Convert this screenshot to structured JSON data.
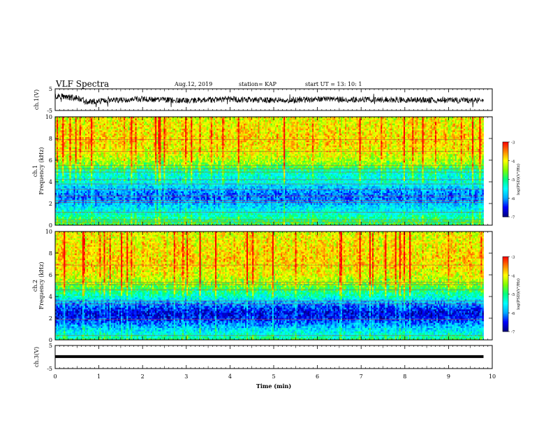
{
  "header": {
    "title": "VLF Spectra",
    "date": "Aug.12, 2019",
    "station": "station= KAP",
    "start": "start  UT  =   13: 10: 1"
  },
  "chart_data": [
    {
      "type": "line",
      "name": "ch1-waveform",
      "ylabel": "ch.1(V)",
      "ylim": [
        -5,
        5
      ],
      "yticks": [
        "5",
        "-5"
      ],
      "xlim": [
        0,
        10
      ],
      "x_extent_min": 9.8,
      "baseline_V": [
        1.8,
        0.4,
        -1.0,
        -0.2,
        0.3,
        -0.5,
        0.2,
        -0.3,
        0.1,
        0.0,
        -0.4
      ],
      "baseline_t": [
        0.0,
        0.6,
        0.7,
        1.5,
        2.0,
        3.0,
        4.0,
        5.0,
        6.0,
        8.0,
        9.8
      ],
      "color": "#000000"
    },
    {
      "type": "heatmap",
      "name": "ch1-spectrogram",
      "ylabel": "Frequency (kHz)",
      "channel_label": "ch.1",
      "ylim": [
        0,
        10
      ],
      "yticks": [
        "0",
        "2",
        "4",
        "6",
        "8",
        "10"
      ],
      "xlim": [
        0,
        10
      ],
      "x_extent_min": 9.8,
      "clim": [
        -7,
        -3
      ],
      "cbar_ticks": [
        "-3",
        "-4",
        "-5",
        "-6",
        "-7"
      ],
      "cbar_label": "log(PSD)(V²/Hz)",
      "profile_freq_kHz": [
        0,
        0.5,
        1.0,
        1.5,
        2.0,
        2.5,
        3.0,
        3.5,
        4.0,
        4.5,
        5.0,
        5.5,
        6.0,
        7.0,
        8.0,
        9.0,
        10.0
      ],
      "profile_logPSD": [
        -4.8,
        -5.0,
        -5.3,
        -5.6,
        -5.9,
        -6.2,
        -6.1,
        -5.8,
        -5.4,
        -5.4,
        -5.2,
        -4.6,
        -4.3,
        -4.0,
        -3.9,
        -4.0,
        -4.1
      ],
      "narrowband_lines_kHz": [
        0.3,
        0.5,
        1.2,
        2.1,
        2.3,
        2.7,
        3.3,
        3.8,
        4.2,
        4.9,
        5.2,
        5.5,
        6.8,
        7.9
      ]
    },
    {
      "type": "heatmap",
      "name": "ch2-spectrogram",
      "ylabel": "Frequency (kHz)",
      "channel_label": "ch.2",
      "ylim": [
        0,
        10
      ],
      "yticks": [
        "0",
        "2",
        "4",
        "6",
        "8",
        "10"
      ],
      "xlim": [
        0,
        10
      ],
      "x_extent_min": 9.8,
      "clim": [
        -7,
        -3
      ],
      "cbar_ticks": [
        "-3",
        "-4",
        "-5",
        "-6",
        "-7"
      ],
      "cbar_label": "log(PSD)(V²/Hz)",
      "profile_freq_kHz": [
        0,
        0.5,
        1.0,
        1.5,
        2.0,
        2.5,
        3.0,
        3.5,
        4.0,
        4.5,
        5.0,
        5.5,
        6.0,
        7.0,
        8.0,
        9.0,
        10.0
      ],
      "profile_logPSD": [
        -5.0,
        -5.4,
        -5.7,
        -6.1,
        -6.5,
        -6.6,
        -6.3,
        -5.9,
        -5.3,
        -5.0,
        -4.6,
        -4.3,
        -4.1,
        -3.9,
        -3.9,
        -4.0,
        -4.1
      ],
      "narrowband_lines_kHz": [
        0.4,
        1.9,
        3.3,
        3.6,
        4.6,
        5.1,
        5.3,
        6.9
      ]
    },
    {
      "type": "line",
      "name": "ch3-waveform",
      "ylabel": "ch.3(V)",
      "ylim": [
        -5,
        5
      ],
      "yticks": [
        "5",
        "-5"
      ],
      "xlim": [
        0,
        10
      ],
      "x_extent_min": 9.8,
      "constant_V": 0.2,
      "color": "#000000"
    }
  ],
  "xaxis": {
    "label": "Time (min)",
    "ticks": [
      "0",
      "1",
      "2",
      "3",
      "4",
      "5",
      "6",
      "7",
      "8",
      "9",
      "10"
    ]
  },
  "colormap": [
    "#000080",
    "#0000ff",
    "#00aaff",
    "#00ffff",
    "#00ff80",
    "#80ff00",
    "#ffff00",
    "#ff8000",
    "#ff0000",
    "#ffffff"
  ]
}
